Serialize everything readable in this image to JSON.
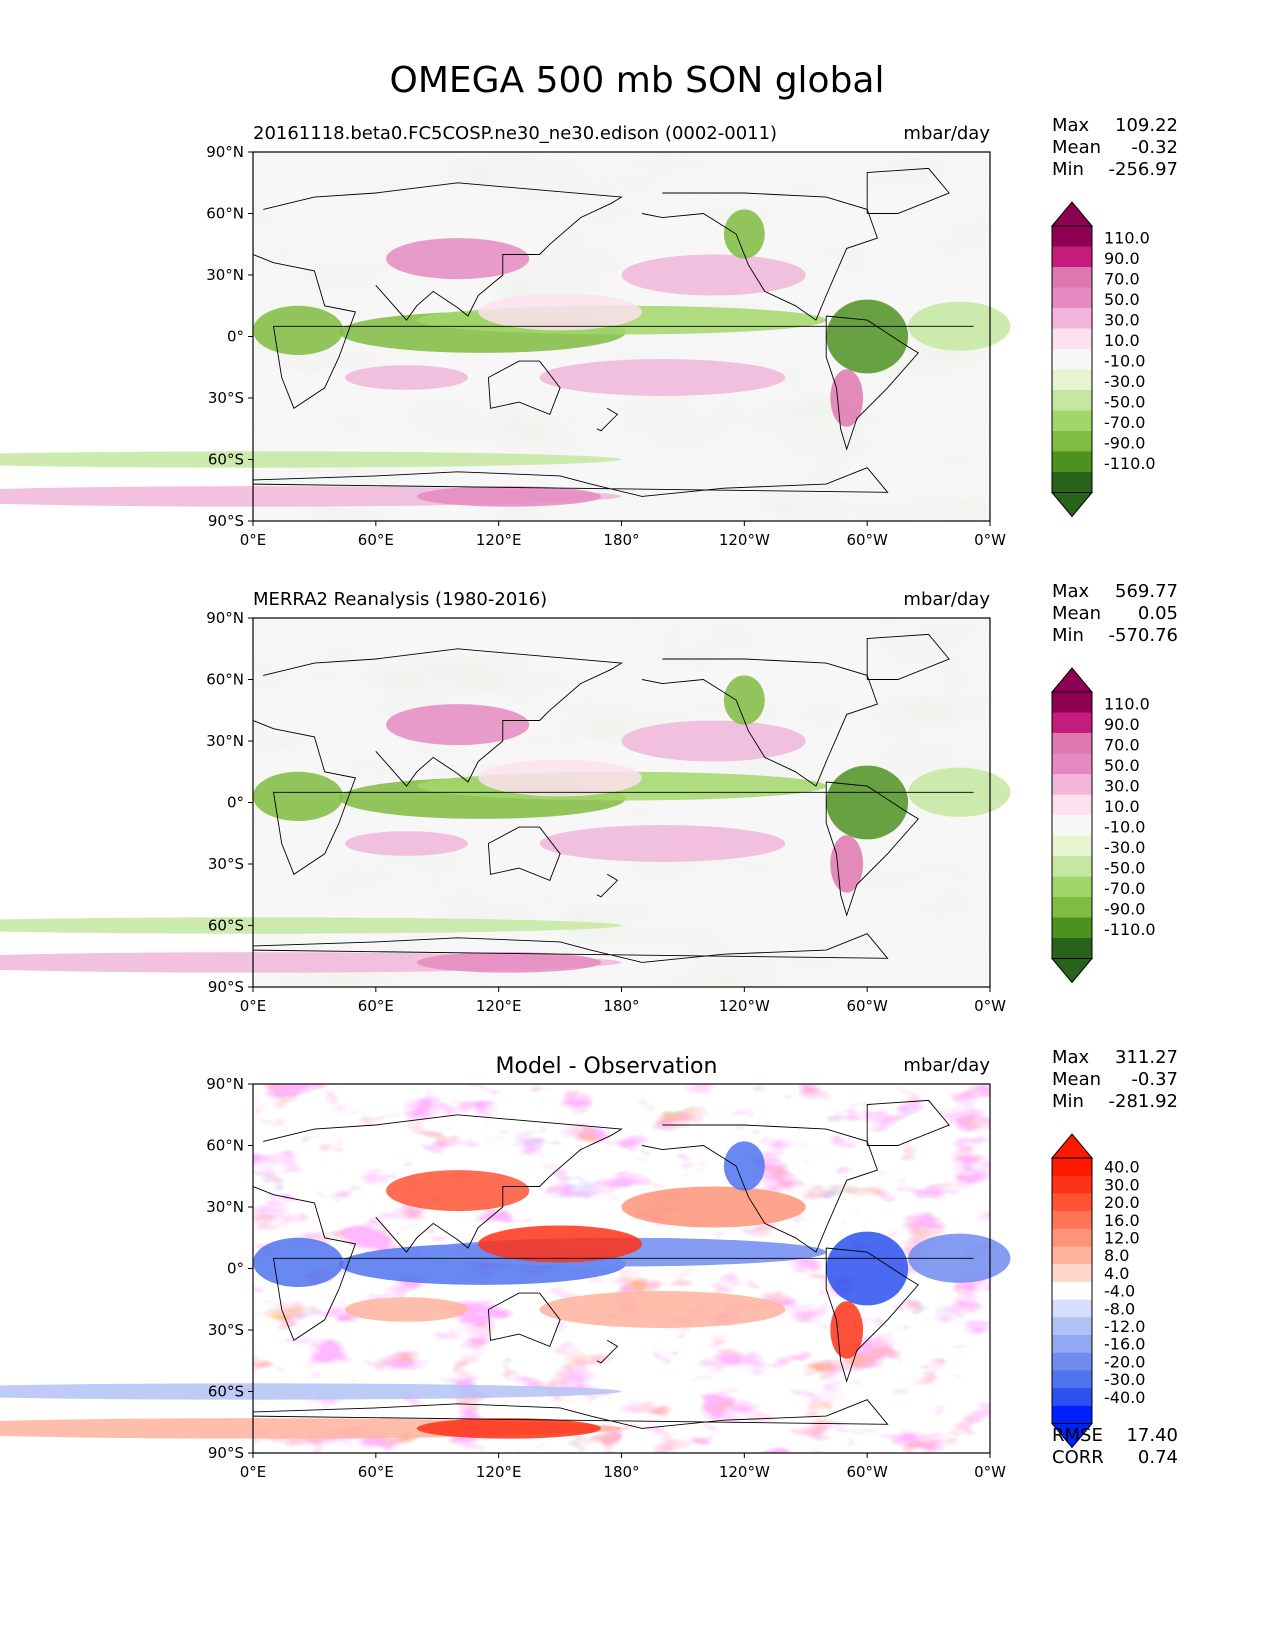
{
  "title": "OMEGA 500 mb SON global",
  "colors": {
    "seq": [
      "#276419",
      "#4d9221",
      "#7fbc41",
      "#a1d76a",
      "#c5e7a1",
      "#e6f5d0",
      "#f7f7f7",
      "#fde0ef",
      "#f1b6da",
      "#e589c0",
      "#de77ae",
      "#c51b7d",
      "#8e0152"
    ],
    "diff": [
      "#0021ff",
      "#2a50f0",
      "#4f73ee",
      "#6f8cf0",
      "#93a8f3",
      "#b3c2f6",
      "#d6defb",
      "#ffffff",
      "#ffd8cc",
      "#ffb39d",
      "#ff9478",
      "#ff7456",
      "#ff5334",
      "#ff3116",
      "#fb1a00"
    ]
  },
  "axes": {
    "y_ticks": [
      "90°N",
      "60°N",
      "30°N",
      "0°",
      "30°S",
      "60°S",
      "90°S"
    ],
    "x_ticks": [
      "0°E",
      "60°E",
      "120°E",
      "180°",
      "120°W",
      "60°W",
      "0°W"
    ]
  },
  "panels": [
    {
      "left_title": "20161118.beta0.FC5COSP.ne30_ne30.edison (0002-0011)",
      "center_title": "",
      "units": "mbar/day",
      "stats": {
        "max_label": "Max",
        "max": "109.22",
        "mean_label": "Mean",
        "mean": "-0.32",
        "min_label": "Min",
        "min": "-256.97"
      },
      "colorbar_ticks": [
        "110.0",
        "90.0",
        "70.0",
        "50.0",
        "30.0",
        "10.0",
        "-10.0",
        "-30.0",
        "-50.0",
        "-70.0",
        "-90.0",
        "-110.0"
      ]
    },
    {
      "left_title": "MERRA2 Reanalysis (1980-2016)",
      "center_title": "",
      "units": "mbar/day",
      "stats": {
        "max_label": "Max",
        "max": "569.77",
        "mean_label": "Mean",
        "mean": "0.05",
        "min_label": "Min",
        "min": "-570.76"
      },
      "colorbar_ticks": [
        "110.0",
        "90.0",
        "70.0",
        "50.0",
        "30.0",
        "10.0",
        "-10.0",
        "-30.0",
        "-50.0",
        "-70.0",
        "-90.0",
        "-110.0"
      ]
    },
    {
      "left_title": "",
      "center_title": "Model - Observation",
      "units": "mbar/day",
      "stats": {
        "max_label": "Max",
        "max": "311.27",
        "mean_label": "Mean",
        "mean": "-0.37",
        "min_label": "Min",
        "min": "-281.92"
      },
      "colorbar_ticks": [
        "40.0",
        "30.0",
        "20.0",
        "16.0",
        "12.0",
        "8.0",
        "4.0",
        "-4.0",
        "-8.0",
        "-12.0",
        "-16.0",
        "-20.0",
        "-30.0",
        "-40.0"
      ],
      "extra_stats": {
        "rmse_label": "RMSE",
        "rmse": "17.40",
        "corr_label": "CORR",
        "corr": "0.74"
      }
    }
  ],
  "chart_data": {
    "type": "heatmap",
    "title": "OMEGA 500 mb SON global",
    "variable": "OMEGA 500 mb",
    "season": "SON",
    "units": "mbar/day",
    "x_range": [
      0,
      360
    ],
    "y_range": [
      -90,
      90
    ],
    "panels": [
      {
        "name": "20161118.beta0.FC5COSP.ne30_ne30.edison (0002-0011)",
        "max": 109.22,
        "mean": -0.32,
        "min": -256.97,
        "levels": [
          -110,
          -90,
          -70,
          -50,
          -30,
          -10,
          10,
          30,
          50,
          70,
          90,
          110
        ]
      },
      {
        "name": "MERRA2 Reanalysis (1980-2016)",
        "max": 569.77,
        "mean": 0.05,
        "min": -570.76,
        "levels": [
          -110,
          -90,
          -70,
          -50,
          -30,
          -10,
          10,
          30,
          50,
          70,
          90,
          110
        ]
      },
      {
        "name": "Model - Observation",
        "max": 311.27,
        "mean": -0.37,
        "min": -281.92,
        "rmse": 17.4,
        "corr": 0.74,
        "levels": [
          -40,
          -30,
          -20,
          -16,
          -12,
          -8,
          -4,
          4,
          8,
          12,
          16,
          20,
          30,
          40
        ]
      }
    ]
  }
}
